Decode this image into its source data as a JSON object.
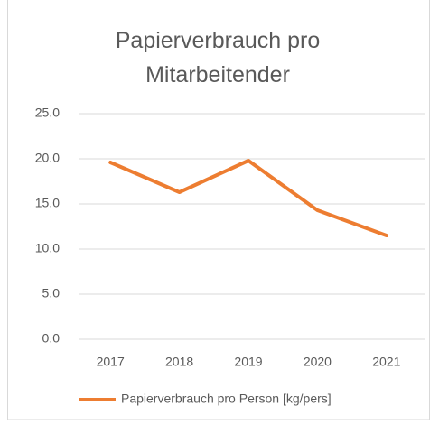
{
  "chart_data": {
    "type": "line",
    "title": "Papierverbrauch pro Mitarbeitender",
    "categories": [
      "2017",
      "2018",
      "2019",
      "2020",
      "2021"
    ],
    "series": [
      {
        "name": "Papierverbrauch pro Person [kg/pers]",
        "color": "#ed7d31",
        "values": [
          19.6,
          16.3,
          19.8,
          14.3,
          11.5
        ]
      }
    ],
    "ylim": [
      0,
      25
    ],
    "yticks": [
      {
        "value": 0,
        "label": "0.0"
      },
      {
        "value": 5,
        "label": "5.0"
      },
      {
        "value": 10,
        "label": "10.0"
      },
      {
        "value": 15,
        "label": "15.0"
      },
      {
        "value": 20,
        "label": "20.0"
      },
      {
        "value": 25,
        "label": "25.0"
      }
    ],
    "grid": true,
    "legend": "bottom"
  }
}
